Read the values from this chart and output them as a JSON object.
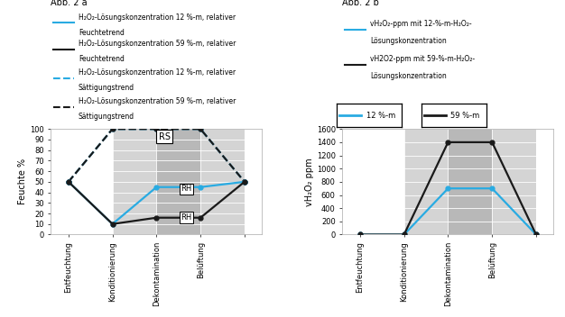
{
  "phases": [
    "Entfeuchtung",
    "Konditionierung",
    "Dekontamination",
    "Belüftung"
  ],
  "x": [
    0,
    1,
    2,
    3,
    4
  ],
  "x_ticks": [
    0,
    1,
    2,
    3,
    4
  ],
  "x_tick_labels": [
    "Entfeuchtung",
    "Konditionierung",
    "Dekontamination",
    "Belüftung",
    ""
  ],
  "cyan_rh": [
    50,
    10,
    45,
    45,
    50
  ],
  "black_rh": [
    50,
    10,
    16,
    16,
    50
  ],
  "cyan_sat": [
    50,
    100,
    100,
    100,
    50
  ],
  "black_sat": [
    50,
    100,
    100,
    100,
    50
  ],
  "cyan_ppm": [
    0,
    0,
    700,
    700,
    0
  ],
  "black_ppm": [
    0,
    0,
    1400,
    1400,
    0
  ],
  "cyan_color": "#29abe2",
  "black_color": "#1a1a1a",
  "bg_light": "#d4d4d4",
  "bg_medium": "#b8b8b8",
  "ylim_left": [
    0,
    100
  ],
  "ylim_right": [
    0,
    1600
  ],
  "yticks_left": [
    0,
    10,
    20,
    30,
    40,
    50,
    60,
    70,
    80,
    90,
    100
  ],
  "yticks_right": [
    0,
    200,
    400,
    600,
    800,
    1000,
    1200,
    1400,
    1600
  ],
  "title_a": "Abb. 2 a",
  "title_b": "Abb. 2 b",
  "ylabel_left": "Feuchte %",
  "ylabel_right": "vH₂O₂ ppm",
  "legend_a": [
    "H₂O₂-Lösungskonzentration 12 %-m, relativer\nFeuchtetrend",
    "H₂O₂-Lösungskonzentration 59 %-m, relativer\nFeuchtetrend",
    "H₂O₂-Lösungskonzentration 12 %-m, relativer\nSättigungstrend",
    "H₂O₂-Lösungskonzentration 59 %-m, relativer\nSättigungstrend"
  ],
  "legend_b": [
    "vH₂O₂-ppm mit 12-%-m-H₂O₂-\nLösungskonzentration",
    "vH2O2-ppm mit 59-%-m-H₂O₂-\nLösungskonzentration"
  ],
  "legend_b_label1": "12 %-m",
  "legend_b_label2": "59 %-m",
  "spine_color": "#aaaaaa"
}
